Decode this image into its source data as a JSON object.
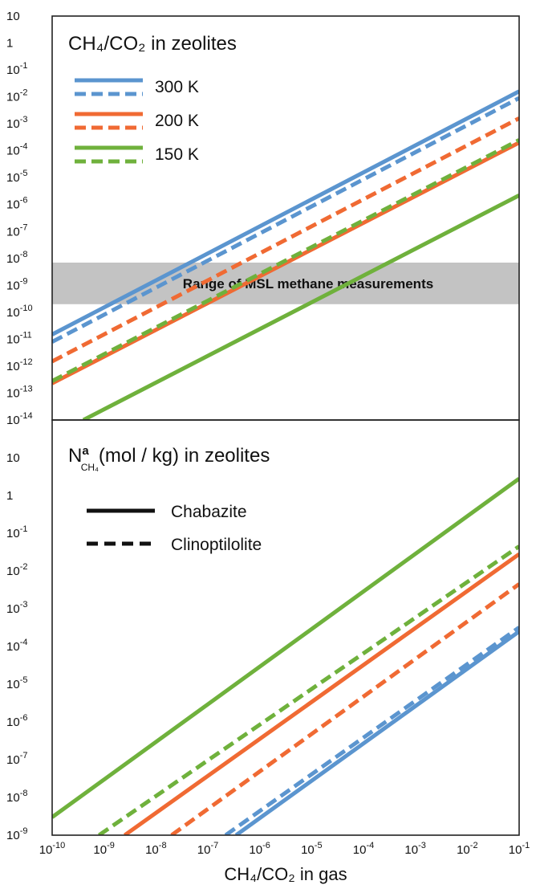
{
  "colors": {
    "300K": "#5b95cf",
    "200K": "#f06a33",
    "150K": "#6fb13c",
    "band": "#c3c3c3",
    "axis": "#222222"
  },
  "xaxis": {
    "label": "CH₄/CO₂ in gas",
    "ticks": [
      {
        "base": "10",
        "exp": "-10",
        "value": 1e-10
      },
      {
        "base": "10",
        "exp": "-9",
        "value": 1e-09
      },
      {
        "base": "10",
        "exp": "-8",
        "value": 1e-08
      },
      {
        "base": "10",
        "exp": "-7",
        "value": 1e-07
      },
      {
        "base": "10",
        "exp": "-6",
        "value": 1e-06
      },
      {
        "base": "10",
        "exp": "-5",
        "value": 1e-05
      },
      {
        "base": "10",
        "exp": "-4",
        "value": 0.0001
      },
      {
        "base": "10",
        "exp": "-3",
        "value": 0.001
      },
      {
        "base": "10",
        "exp": "-2",
        "value": 0.01
      },
      {
        "base": "10",
        "exp": "-1",
        "value": 0.1
      }
    ]
  },
  "chart_data": [
    {
      "type": "line",
      "title": "CH₄/CO₂ in zeolites",
      "scale": "log-log",
      "xlim": [
        1e-10,
        0.1
      ],
      "ylim": [
        1e-14,
        10
      ],
      "grid": false,
      "yticks": [
        {
          "base": "10",
          "exp": "",
          "value": 10
        },
        {
          "base": "1",
          "exp": "",
          "value": 1
        },
        {
          "base": "10",
          "exp": "-1",
          "value": 0.1
        },
        {
          "base": "10",
          "exp": "-2",
          "value": 0.01
        },
        {
          "base": "10",
          "exp": "-3",
          "value": 0.001
        },
        {
          "base": "10",
          "exp": "-4",
          "value": 0.0001
        },
        {
          "base": "10",
          "exp": "-5",
          "value": 1e-05
        },
        {
          "base": "10",
          "exp": "-6",
          "value": 1e-06
        },
        {
          "base": "10",
          "exp": "-7",
          "value": 1e-07
        },
        {
          "base": "10",
          "exp": "-8",
          "value": 1e-08
        },
        {
          "base": "10",
          "exp": "-9",
          "value": 1e-09
        },
        {
          "base": "10",
          "exp": "-10",
          "value": 1e-10
        },
        {
          "base": "10",
          "exp": "-11",
          "value": 1e-11
        },
        {
          "base": "10",
          "exp": "-12",
          "value": 1e-12
        },
        {
          "base": "10",
          "exp": "-13",
          "value": 1e-13
        },
        {
          "base": "10",
          "exp": "-14",
          "value": 1e-14
        }
      ],
      "band": {
        "label": "Range of MSL methane measurements",
        "y_range": [
          2e-10,
          7e-09
        ]
      },
      "legend": {
        "position": "top-left",
        "entries": [
          {
            "label": "300 K",
            "color_key": "300K"
          },
          {
            "label": "200 K",
            "color_key": "200K"
          },
          {
            "label": "150 K",
            "color_key": "150K"
          }
        ]
      },
      "series": [
        {
          "temp": "300K",
          "material": "Chabazite",
          "dash": false,
          "x": [
            1e-10,
            0.1
          ],
          "y": [
            1.5e-11,
            0.016
          ]
        },
        {
          "temp": "300K",
          "material": "Clinoptilolite",
          "dash": true,
          "x": [
            1e-10,
            0.1
          ],
          "y": [
            8e-12,
            0.009
          ]
        },
        {
          "temp": "200K",
          "material": "Chabazite",
          "dash": false,
          "x": [
            1e-10,
            0.1
          ],
          "y": [
            2.3e-13,
            0.0002
          ]
        },
        {
          "temp": "200K",
          "material": "Clinoptilolite",
          "dash": true,
          "x": [
            1e-10,
            0.1
          ],
          "y": [
            1.5e-12,
            0.0016
          ]
        },
        {
          "temp": "150K",
          "material": "Chabazite",
          "dash": false,
          "x": [
            4e-10,
            0.1
          ],
          "y": [
            1e-14,
            2.2e-06
          ]
        },
        {
          "temp": "150K",
          "material": "Clinoptilolite",
          "dash": true,
          "x": [
            1e-10,
            0.1
          ],
          "y": [
            2.8e-13,
            0.00025
          ]
        }
      ]
    },
    {
      "type": "line",
      "title": "N",
      "title_sup": "a",
      "title_sub": "CH₄",
      "title_rest": "(mol / kg) in zeolites",
      "scale": "log-log",
      "xlim": [
        1e-10,
        0.1
      ],
      "ylim": [
        1e-09,
        100
      ],
      "grid": false,
      "yticks": [
        {
          "base": "10",
          "exp": "",
          "value": 10
        },
        {
          "base": "1",
          "exp": "",
          "value": 1
        },
        {
          "base": "10",
          "exp": "-1",
          "value": 0.1
        },
        {
          "base": "10",
          "exp": "-2",
          "value": 0.01
        },
        {
          "base": "10",
          "exp": "-3",
          "value": 0.001
        },
        {
          "base": "10",
          "exp": "-4",
          "value": 0.0001
        },
        {
          "base": "10",
          "exp": "-5",
          "value": 1e-05
        },
        {
          "base": "10",
          "exp": "-6",
          "value": 1e-06
        },
        {
          "base": "10",
          "exp": "-7",
          "value": 1e-07
        },
        {
          "base": "10",
          "exp": "-8",
          "value": 1e-08
        },
        {
          "base": "10",
          "exp": "-9",
          "value": 1e-09
        }
      ],
      "legend": {
        "position": "top-left",
        "entries": [
          {
            "label": "Chabazite",
            "dash": false
          },
          {
            "label": "Clinoptilolite",
            "dash": true
          }
        ]
      },
      "series": [
        {
          "temp": "150K",
          "material": "Chabazite",
          "dash": false,
          "x": [
            1e-10,
            0.1
          ],
          "y": [
            3e-09,
            2.8
          ]
        },
        {
          "temp": "150K",
          "material": "Clinoptilolite",
          "dash": true,
          "x": [
            8e-10,
            0.1
          ],
          "y": [
            1e-09,
            0.045
          ]
        },
        {
          "temp": "200K",
          "material": "Chabazite",
          "dash": false,
          "x": [
            2.5e-09,
            0.1
          ],
          "y": [
            1e-09,
            0.028
          ]
        },
        {
          "temp": "200K",
          "material": "Clinoptilolite",
          "dash": true,
          "x": [
            2e-08,
            0.1
          ],
          "y": [
            1e-09,
            0.0045
          ]
        },
        {
          "temp": "300K",
          "material": "Chabazite",
          "dash": false,
          "x": [
            3.5e-07,
            0.1
          ],
          "y": [
            1e-09,
            0.00025
          ]
        },
        {
          "temp": "300K",
          "material": "Clinoptilolite",
          "dash": true,
          "x": [
            2.2e-07,
            0.1
          ],
          "y": [
            1e-09,
            0.00032
          ]
        }
      ]
    }
  ]
}
